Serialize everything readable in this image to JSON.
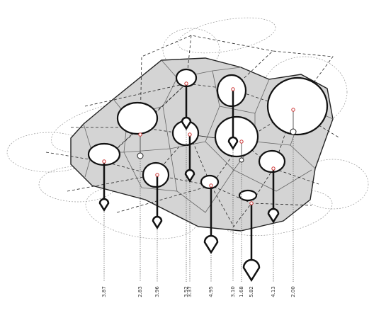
{
  "labels": [
    "3.87",
    "2.83",
    "3.96",
    "3.52",
    "3.37",
    "4.95",
    "3.10",
    "1.68",
    "5.82",
    "4.13",
    "2.00"
  ]
}
